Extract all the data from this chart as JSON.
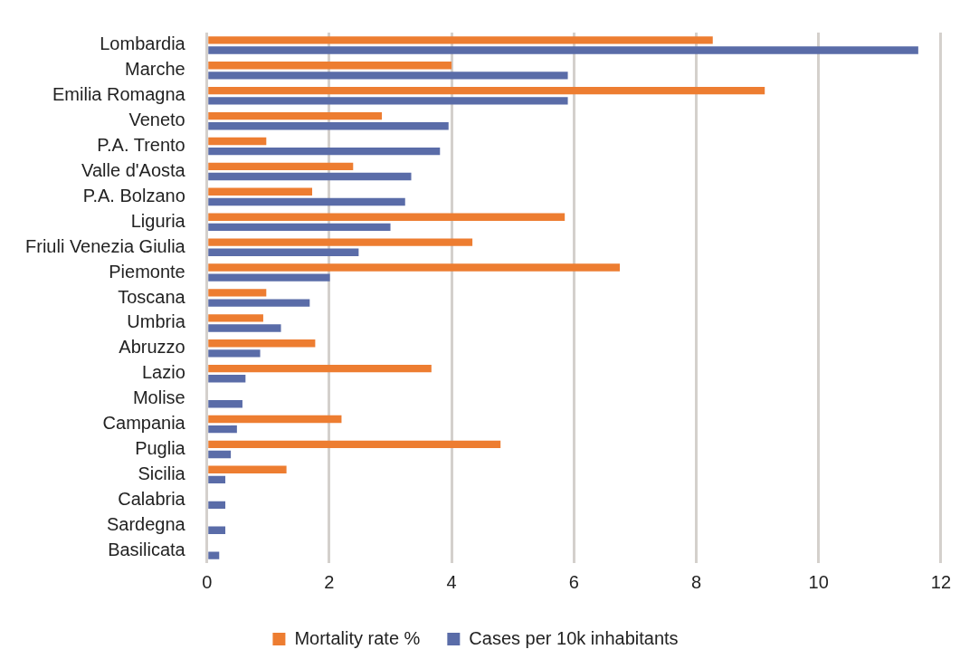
{
  "chart_data": {
    "type": "bar",
    "orientation": "horizontal",
    "categories": [
      "Lombardia",
      "Marche",
      "Emilia Romagna",
      "Veneto",
      "P.A. Trento",
      "Valle d'Aosta",
      "P.A. Bolzano",
      "Liguria",
      "Friuli Venezia Giulia",
      "Piemonte",
      "Toscana",
      "Umbria",
      "Abruzzo",
      "Lazio",
      "Molise",
      "Campania",
      "Puglia",
      "Sicilia",
      "Calabria",
      "Sardegna",
      "Basilicata"
    ],
    "series": [
      {
        "name": "Mortality rate %",
        "color": "#ed7d31",
        "values": [
          8.27,
          4.0,
          9.12,
          2.86,
          0.97,
          2.39,
          1.72,
          5.85,
          4.34,
          6.75,
          0.97,
          0.92,
          1.77,
          3.67,
          null,
          2.2,
          4.8,
          1.3,
          null,
          null,
          null
        ]
      },
      {
        "name": "Cases per 10k inhabitants",
        "color": "#5a6ca8",
        "values": [
          11.63,
          5.9,
          5.9,
          3.95,
          3.81,
          3.34,
          3.24,
          3.0,
          2.48,
          2.01,
          1.68,
          1.21,
          0.87,
          0.63,
          0.58,
          0.49,
          0.39,
          0.3,
          0.3,
          0.3,
          0.2
        ]
      }
    ],
    "xlim": [
      0,
      12
    ],
    "xticks": [
      0,
      2,
      4,
      6,
      8,
      10,
      12
    ],
    "grid": "x",
    "legend": "bottom"
  }
}
